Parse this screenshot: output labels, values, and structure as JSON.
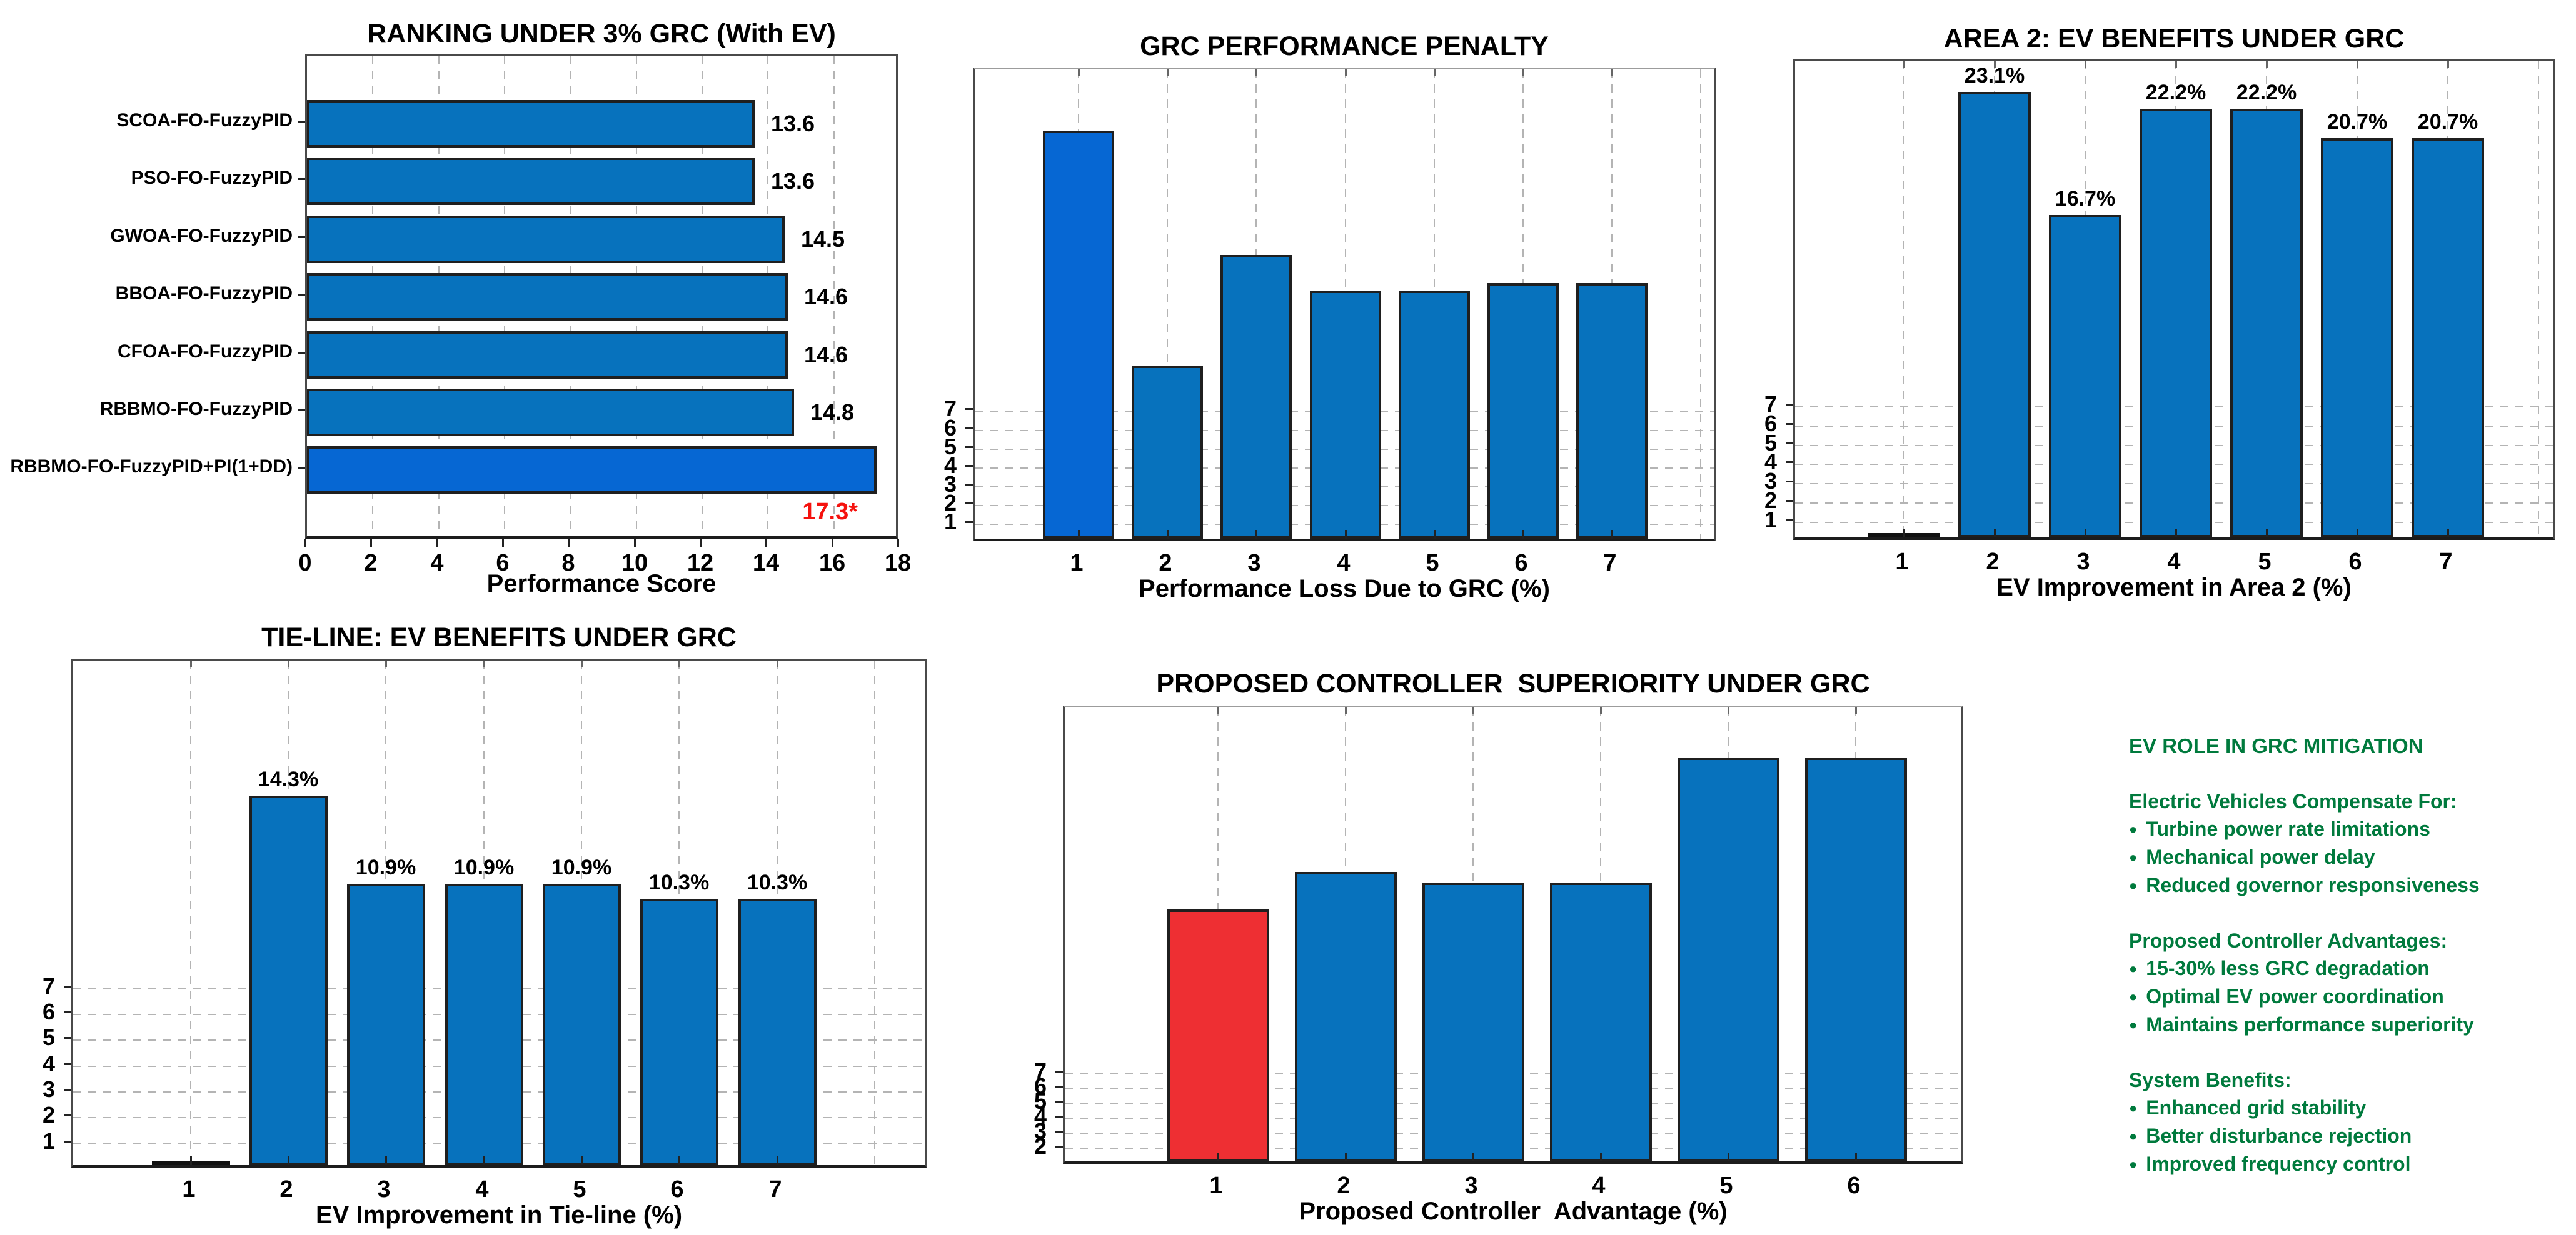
{
  "figure": {
    "background": "#ffffff"
  },
  "colors": {
    "bar_blue": "#0772BD",
    "bar_blue_bright": "#0667D3",
    "bar_red": "#EE2F33",
    "label_red": "#F5120E",
    "green_text": "#007A3D",
    "ink": "#000000"
  },
  "chart_data": [
    {
      "id": "ranking",
      "type": "bar",
      "orientation": "horizontal",
      "title": "RANKING UNDER 3% GRC (With EV)",
      "xlabel": "Performance Score",
      "categories": [
        "SCOA-FO-FuzzyPID",
        "PSO-FO-FuzzyPID",
        "GWOA-FO-FuzzyPID",
        "BBOA-FO-FuzzyPID",
        "CFOA-FO-FuzzyPID",
        "RBBMO-FO-FuzzyPID",
        "RBBMO-FO-FuzzyPID+PI(1+DD)"
      ],
      "values": [
        13.6,
        13.6,
        14.5,
        14.6,
        14.6,
        14.8,
        17.3
      ],
      "value_labels": [
        "13.6",
        "13.6",
        "14.5",
        "14.6",
        "14.6",
        "14.8",
        "17.3*"
      ],
      "highlight_index": 6,
      "highlight_color": "bar_blue_bright",
      "special_label_index": 6,
      "xlim": [
        0,
        18
      ],
      "xticks": [
        0,
        2,
        4,
        6,
        8,
        10,
        12,
        14,
        16,
        18
      ],
      "grid": "vertical-dashed"
    },
    {
      "id": "penalty",
      "type": "bar",
      "orientation": "vertical",
      "title": "GRC PERFORMANCE PENALTY",
      "xlabel": "Performance Loss Due to GRC (%)",
      "categories": [
        "1",
        "2",
        "3",
        "4",
        "5",
        "6",
        "7"
      ],
      "values": [
        21.7,
        9.2,
        15.1,
        13.2,
        13.2,
        13.6,
        13.6
      ],
      "bar_labels": [
        "",
        "",
        "",
        "",
        "",
        "",
        ""
      ],
      "highlight_index": 0,
      "highlight_color": "bar_blue_bright",
      "ylim": [
        0,
        25.2
      ],
      "yticks": [
        1,
        2,
        3,
        4,
        5,
        6,
        7
      ],
      "grid": "both-dashed"
    },
    {
      "id": "area2",
      "type": "bar",
      "orientation": "vertical",
      "title": "AREA 2: EV BENEFITS UNDER GRC",
      "xlabel": "EV Improvement in Area 2 (%)",
      "categories": [
        "1",
        "2",
        "3",
        "4",
        "5",
        "6",
        "7"
      ],
      "values": [
        0.15,
        23.1,
        16.7,
        22.2,
        22.2,
        20.7,
        20.7
      ],
      "bar_labels": [
        "",
        "23.1%",
        "16.7%",
        "22.2%",
        "22.2%",
        "20.7%",
        "20.7%"
      ],
      "highlight_index": -1,
      "highlight_color": "",
      "ylim": [
        0,
        24.9
      ],
      "yticks": [
        1,
        2,
        3,
        4,
        5,
        6,
        7
      ],
      "grid": "both-dashed"
    },
    {
      "id": "tieline",
      "type": "bar",
      "orientation": "vertical",
      "title": "TIE-LINE: EV BENEFITS UNDER GRC",
      "xlabel": "EV Improvement in Tie-line (%)",
      "categories": [
        "1",
        "2",
        "3",
        "4",
        "5",
        "6",
        "7"
      ],
      "values": [
        0.1,
        14.3,
        10.9,
        10.9,
        10.9,
        10.3,
        10.3
      ],
      "bar_labels": [
        "",
        "14.3%",
        "10.9%",
        "10.9%",
        "10.9%",
        "10.3%",
        "10.3%"
      ],
      "highlight_index": -1,
      "highlight_color": "",
      "ylim": [
        0,
        19.7
      ],
      "yticks": [
        1,
        2,
        3,
        4,
        5,
        6,
        7
      ],
      "grid": "both-dashed"
    },
    {
      "id": "superiority",
      "type": "bar",
      "orientation": "vertical",
      "title": "PROPOSED CONTROLLER  SUPERIORITY UNDER GRC",
      "xlabel": "Proposed Controller  Advantage (%)",
      "categories": [
        "1",
        "2",
        "3",
        "4",
        "5",
        "6"
      ],
      "values": [
        17.6,
        20.1,
        19.4,
        19.4,
        27.7,
        27.7
      ],
      "bar_labels": [
        "",
        "",
        "",
        "",
        "",
        ""
      ],
      "highlight_index": 0,
      "highlight_color": "bar_red",
      "ylim": [
        0.9,
        31.3
      ],
      "yticks": [
        2,
        3,
        4,
        5,
        6,
        7
      ],
      "grid": "both-dashed"
    }
  ],
  "notes_panel": {
    "title": "EV ROLE IN GRC MITIGATION",
    "sections": [
      {
        "heading": "Electric Vehicles Compensate For:",
        "items": [
          "Turbine power rate limitations",
          "Mechanical power delay",
          "Reduced governor responsiveness"
        ]
      },
      {
        "heading": "Proposed Controller Advantages:",
        "items": [
          "15-30% less GRC degradation",
          "Optimal EV power coordination",
          "Maintains performance superiority"
        ]
      },
      {
        "heading": "System Benefits:",
        "items": [
          "Enhanced grid stability",
          "Better disturbance rejection",
          "Improved frequency control"
        ]
      }
    ]
  }
}
